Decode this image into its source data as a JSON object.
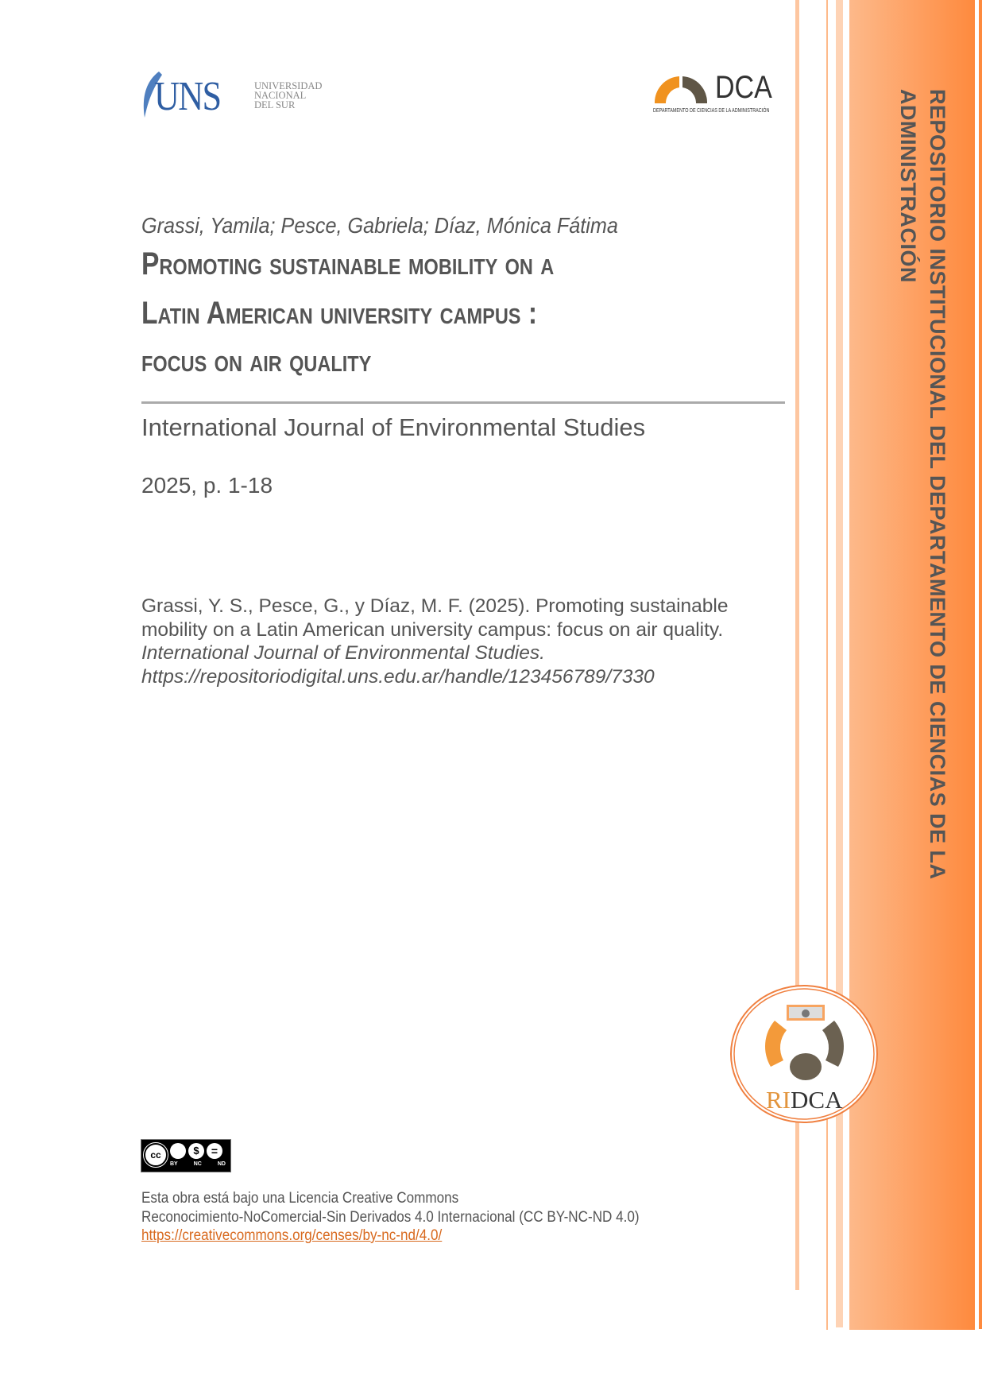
{
  "header": {
    "uns_logo": {
      "mark": "UNS",
      "lines": [
        "UNIVERSIDAD",
        "NACIONAL",
        "DEL SUR"
      ]
    },
    "dca_logo": {
      "mark": "DCA",
      "subtitle": "DEPARTAMENTO DE CIENCIAS DE LA ADMINISTRACIÓN"
    }
  },
  "sidebar": {
    "line1": "REPOSITORIO INSTITUCIONAL DEL DEPARTAMENTO DE CIENCIAS DE LA",
    "line2": "ADMINISTRACIÓN",
    "ridca_logo": {
      "prefix": "RI",
      "suffix": "DCA"
    }
  },
  "document": {
    "authors": "Grassi, Yamila; Pesce, Gabriela; Díaz, Mónica Fátima",
    "title_lines": [
      "Promoting sustainable mobility on a",
      "Latin American university campus :",
      "focus on air quality"
    ],
    "journal": "International Journal of Environmental Studies",
    "year_pages": "2025, p. 1-18",
    "citation": {
      "line1": "Grassi, Y. S., Pesce, G., y Díaz, M. F. (2025). Promoting sustainable",
      "line2": "mobility on a Latin American university campus: focus on air quality.",
      "journal_italic": "International Journal of Environmental Studies.",
      "url": "https://repositoriodigital.uns.edu.ar/handle/123456789/7330"
    }
  },
  "license": {
    "badge_labels": [
      "BY",
      "NC",
      "ND"
    ],
    "badge_cc": "cc",
    "line1": "Esta obra está bajo una Licencia Creative Commons",
    "line2": "Reconocimiento-NoComercial-Sin Derivados 4.0 Internacional (CC BY-NC-ND 4.0)",
    "link": "https://creativecommons.org/censes/by-nc-nd/4.0/"
  },
  "colors": {
    "orange": "#f7942f",
    "band_light": "#fdb98a",
    "band_dark": "#fe8a3e",
    "gray_brown": "#6b6151",
    "uns_blue": "#2f5ea3",
    "text": "#555555",
    "link": "#d8691e"
  }
}
